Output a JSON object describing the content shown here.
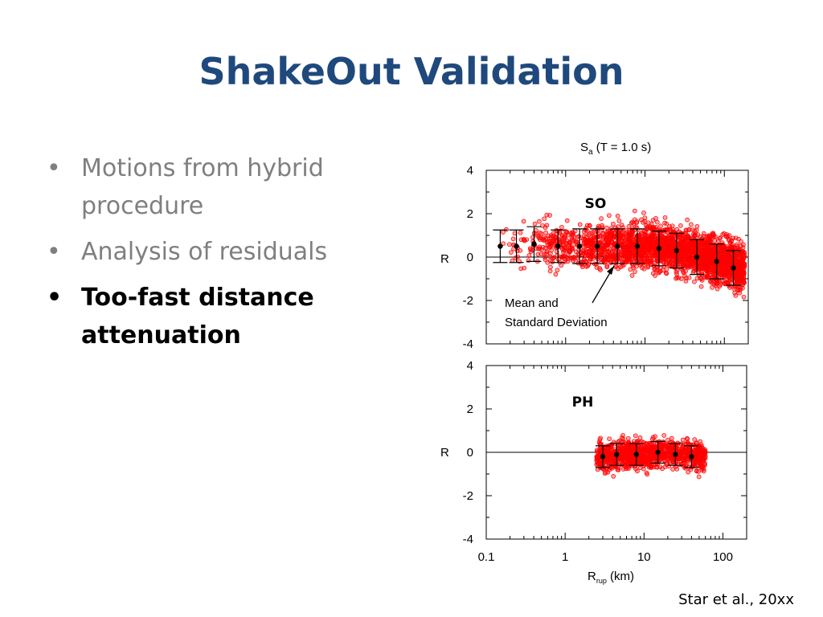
{
  "slide": {
    "title": "ShakeOut Validation",
    "bullets": [
      {
        "text": "Motions from hybrid procedure",
        "bold": false
      },
      {
        "text": "Analysis of residuals",
        "bold": false
      },
      {
        "text": "Too-fast distance attenuation",
        "bold": true
      }
    ],
    "citation": "Star et al., 20xx",
    "bullet_glyph": "•"
  },
  "chart_data": [
    {
      "type": "scatter",
      "panel_label": "SO",
      "title": "Sa (T = 1.0 s)",
      "ylabel": "R",
      "xscale": "log",
      "xlim": [
        0.1,
        200
      ],
      "ylim": [
        -4,
        4
      ],
      "yticks": [
        "4",
        "2",
        "0",
        "-2",
        "-4"
      ],
      "annotation": [
        "Mean and",
        "Standard Deviation"
      ],
      "scatter_color": "#ff0000",
      "scatter_range": [
        0.15,
        180
      ],
      "mean_std": [
        {
          "x": 0.15,
          "mean": 0.5,
          "sd": 0.75
        },
        {
          "x": 0.24,
          "mean": 0.5,
          "sd": 0.75
        },
        {
          "x": 0.4,
          "mean": 0.6,
          "sd": 0.8
        },
        {
          "x": 0.8,
          "mean": 0.5,
          "sd": 0.75
        },
        {
          "x": 1.5,
          "mean": 0.5,
          "sd": 0.8
        },
        {
          "x": 2.5,
          "mean": 0.5,
          "sd": 0.8
        },
        {
          "x": 4.5,
          "mean": 0.5,
          "sd": 0.8
        },
        {
          "x": 8,
          "mean": 0.5,
          "sd": 0.8
        },
        {
          "x": 15,
          "mean": 0.4,
          "sd": 0.8
        },
        {
          "x": 25,
          "mean": 0.3,
          "sd": 0.8
        },
        {
          "x": 45,
          "mean": 0.0,
          "sd": 0.8
        },
        {
          "x": 80,
          "mean": -0.2,
          "sd": 0.8
        },
        {
          "x": 130,
          "mean": -0.5,
          "sd": 0.8
        }
      ]
    },
    {
      "type": "scatter",
      "panel_label": "PH",
      "xlabel": "Rrup (km)",
      "ylabel": "R",
      "xscale": "log",
      "xlim": [
        0.1,
        200
      ],
      "ylim": [
        -4,
        4
      ],
      "yticks": [
        "4",
        "2",
        "0",
        "-2",
        "-4"
      ],
      "xticks": [
        "0.1",
        "1",
        "10",
        "100"
      ],
      "scatter_color": "#ff0000",
      "scatter_range": [
        2.5,
        60
      ],
      "mean_std": [
        {
          "x": 3,
          "mean": -0.2,
          "sd": 0.5
        },
        {
          "x": 4.5,
          "mean": -0.1,
          "sd": 0.5
        },
        {
          "x": 8,
          "mean": -0.1,
          "sd": 0.5
        },
        {
          "x": 15,
          "mean": 0.0,
          "sd": 0.5
        },
        {
          "x": 25,
          "mean": -0.1,
          "sd": 0.5
        },
        {
          "x": 40,
          "mean": -0.2,
          "sd": 0.5
        }
      ]
    }
  ]
}
